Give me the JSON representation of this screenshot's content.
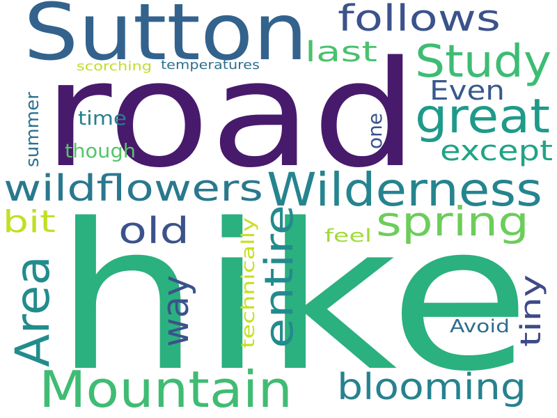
{
  "words": [
    {
      "text": "hike",
      "color": "#2bb07f",
      "orientation": "horizontal"
    },
    {
      "text": "road",
      "color": "#481a6c",
      "orientation": "horizontal"
    },
    {
      "text": "Sutton",
      "color": "#33638d",
      "orientation": "horizontal"
    },
    {
      "text": "Mountain",
      "color": "#3fbc73",
      "orientation": "horizontal"
    },
    {
      "text": "Wilderness",
      "color": "#25848e",
      "orientation": "horizontal"
    },
    {
      "text": "wildflowers",
      "color": "#2a788e",
      "orientation": "horizontal"
    },
    {
      "text": "Study",
      "color": "#3dbc74",
      "orientation": "horizontal"
    },
    {
      "text": "great",
      "color": "#1f9a8a",
      "orientation": "horizontal"
    },
    {
      "text": "Area",
      "color": "#228c8d",
      "orientation": "vertical"
    },
    {
      "text": "blooming",
      "color": "#26828e",
      "orientation": "horizontal"
    },
    {
      "text": "spring",
      "color": "#6ccd5a",
      "orientation": "horizontal"
    },
    {
      "text": "follows",
      "color": "#3b528b",
      "orientation": "horizontal"
    },
    {
      "text": "entire",
      "color": "#238a8d",
      "orientation": "vertical"
    },
    {
      "text": "old",
      "color": "#3b528b",
      "orientation": "horizontal"
    },
    {
      "text": "way",
      "color": "#3b528b",
      "orientation": "vertical"
    },
    {
      "text": "except",
      "color": "#20a486",
      "orientation": "horizontal"
    },
    {
      "text": "Even",
      "color": "#38598c",
      "orientation": "horizontal"
    },
    {
      "text": "tiny",
      "color": "#3e4a89",
      "orientation": "vertical"
    },
    {
      "text": "last",
      "color": "#4ac16d",
      "orientation": "horizontal"
    },
    {
      "text": "bit",
      "color": "#c2df23",
      "orientation": "horizontal"
    },
    {
      "text": "time",
      "color": "#277f8e",
      "orientation": "horizontal"
    },
    {
      "text": "though",
      "color": "#54c568",
      "orientation": "horizontal"
    },
    {
      "text": "one",
      "color": "#3b528b",
      "orientation": "vertical"
    },
    {
      "text": "summer",
      "color": "#2c728e",
      "orientation": "vertical"
    },
    {
      "text": "feel",
      "color": "#a0da39",
      "orientation": "horizontal"
    },
    {
      "text": "technically",
      "color": "#c8e020",
      "orientation": "vertical"
    },
    {
      "text": "Avoid",
      "color": "#2e6e8e",
      "orientation": "horizontal"
    },
    {
      "text": "temperatures",
      "color": "#2d708e",
      "orientation": "horizontal"
    },
    {
      "text": "scorching",
      "color": "#bddf26",
      "orientation": "horizontal"
    }
  ]
}
